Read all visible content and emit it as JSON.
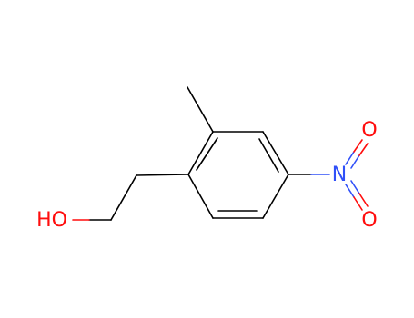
{
  "atoms": [
    {
      "label": "HO"
    },
    {
      "label": "N"
    },
    {
      "label": "O"
    },
    {
      "label": "O"
    }
  ]
}
